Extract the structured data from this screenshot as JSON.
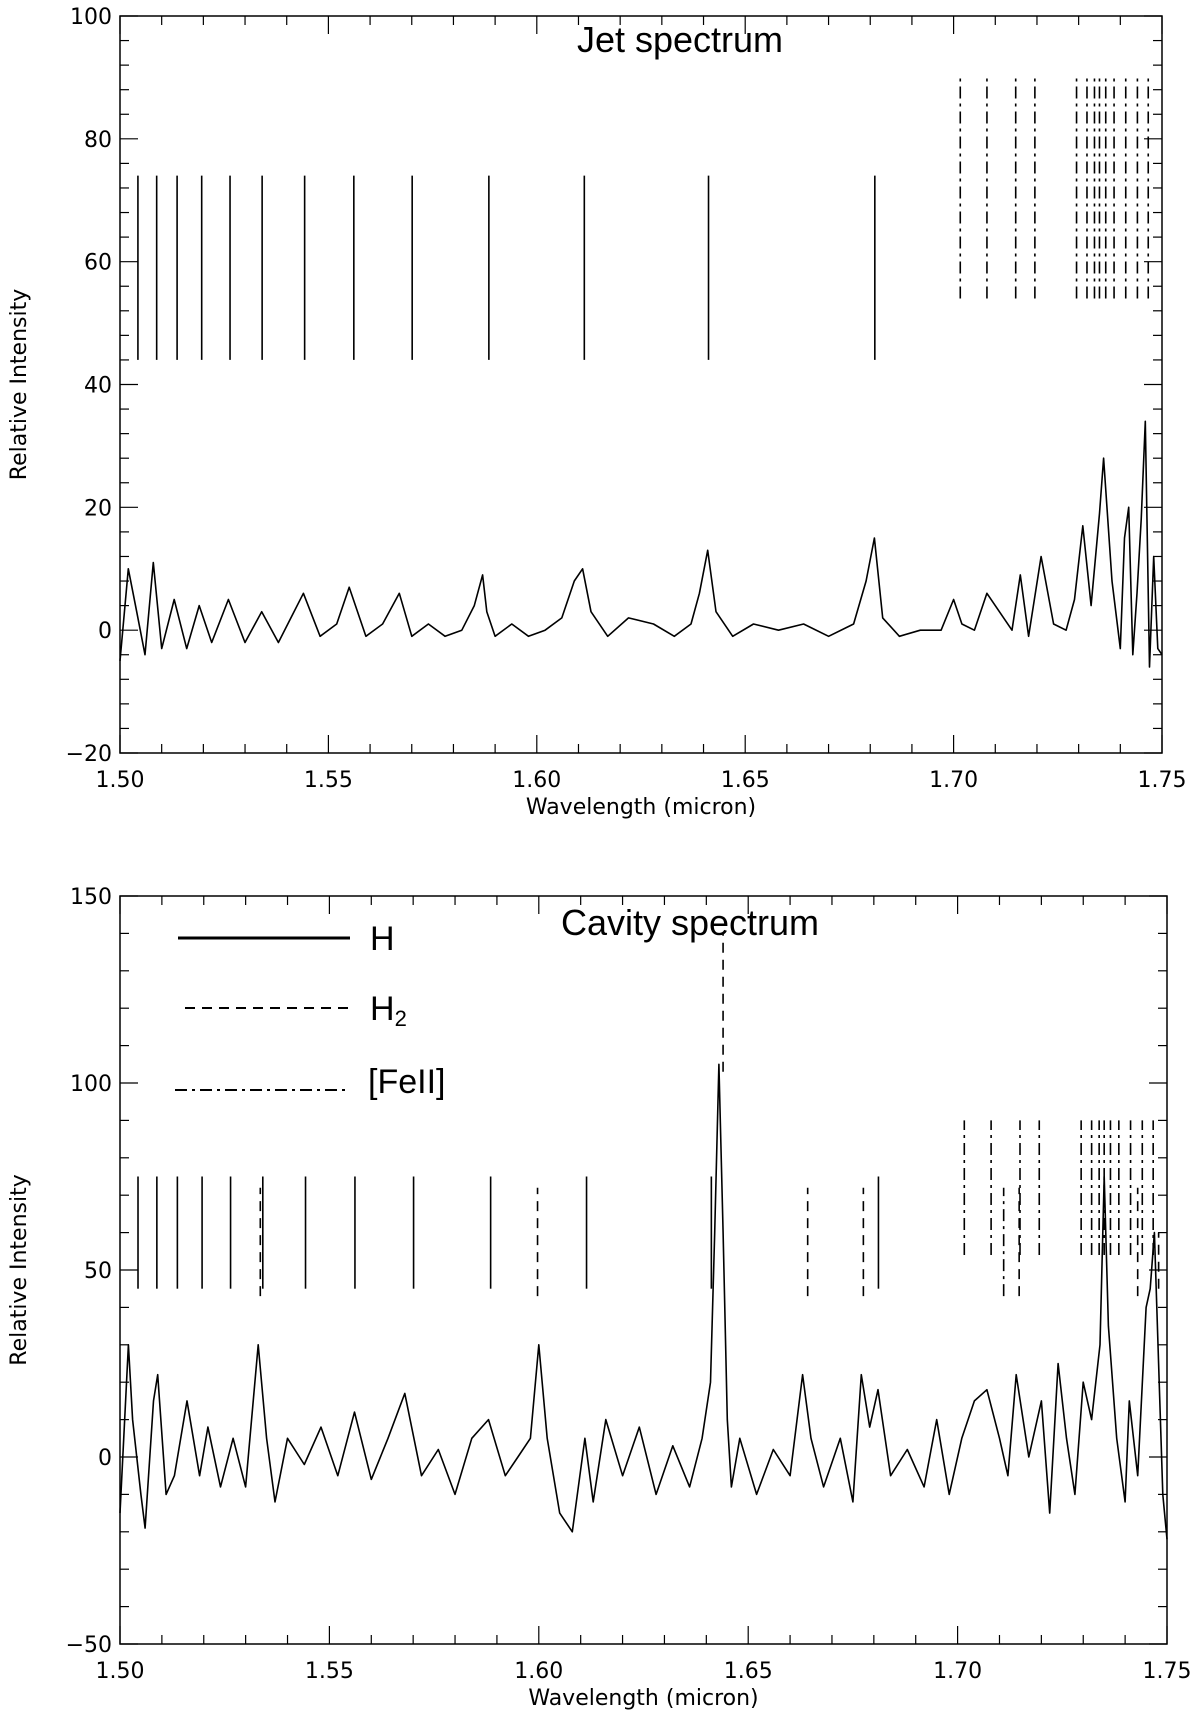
{
  "chart_data": [
    {
      "type": "line",
      "title": "Jet spectrum",
      "xlabel": "Wavelength (micron)",
      "ylabel": "Relative Intensity",
      "xlim": [
        1.5,
        1.75
      ],
      "ylim": [
        -20,
        100
      ],
      "xticks": [
        "1.50",
        "1.55",
        "1.60",
        "1.65",
        "1.70",
        "1.75"
      ],
      "yticks": [
        "−20",
        "0",
        "20",
        "40",
        "60",
        "80",
        "100"
      ],
      "grid": false,
      "series": [
        {
          "x": [
            1.5,
            1.502,
            1.504,
            1.506,
            1.508,
            1.51,
            1.513,
            1.516,
            1.519,
            1.522,
            1.526,
            1.53,
            1.534,
            1.538,
            1.541,
            1.544,
            1.548,
            1.552,
            1.555,
            1.559,
            1.563,
            1.567,
            1.57,
            1.574,
            1.578,
            1.582,
            1.585,
            1.587,
            1.588,
            1.59,
            1.594,
            1.598,
            1.602,
            1.606,
            1.609,
            1.611,
            1.613,
            1.617,
            1.622,
            1.628,
            1.633,
            1.637,
            1.639,
            1.641,
            1.643,
            1.647,
            1.652,
            1.658,
            1.664,
            1.67,
            1.676,
            1.679,
            1.681,
            1.683,
            1.687,
            1.692,
            1.697,
            1.7,
            1.702,
            1.705,
            1.708,
            1.711,
            1.714,
            1.716,
            1.718,
            1.721,
            1.724,
            1.727,
            1.729,
            1.731,
            1.733,
            1.735,
            1.736,
            1.738,
            1.74,
            1.741,
            1.742,
            1.743,
            1.744,
            1.745,
            1.746,
            1.747,
            1.748,
            1.749,
            1.75
          ],
          "y": [
            -5,
            10,
            3,
            -4,
            11,
            -3,
            5,
            -3,
            4,
            -2,
            5,
            -2,
            3,
            -2,
            2,
            6,
            -1,
            1,
            7,
            -1,
            1,
            6,
            -1,
            1,
            -1,
            0,
            4,
            9,
            3,
            -1,
            1,
            -1,
            0,
            2,
            8,
            10,
            3,
            -1,
            2,
            1,
            -1,
            1,
            6,
            13,
            3,
            -1,
            1,
            0,
            1,
            -1,
            1,
            8,
            15,
            2,
            -1,
            0,
            0,
            5,
            1,
            0,
            6,
            3,
            0,
            9,
            -1,
            12,
            1,
            0,
            5,
            17,
            4,
            19,
            28,
            8,
            -3,
            15,
            20,
            -4,
            6,
            18,
            34,
            -6,
            12,
            -3,
            -4
          ]
        }
      ],
      "line_ids": {
        "H": [
          1.5043,
          1.5088,
          1.5137,
          1.5196,
          1.5264,
          1.5341,
          1.5443,
          1.5561,
          1.5701,
          1.5885,
          1.6114,
          1.6412,
          1.6811
        ],
        "[FeII]": [
          1.7016,
          1.708,
          1.7149,
          1.7195,
          1.7295,
          1.732,
          1.7338,
          1.735,
          1.7365,
          1.7385,
          1.7413,
          1.7441,
          1.7467
        ]
      }
    },
    {
      "type": "line",
      "title": "Cavity spectrum",
      "xlabel": "Wavelength (micron)",
      "ylabel": "Relative Intensity",
      "xlim": [
        1.5,
        1.75
      ],
      "ylim": [
        -50,
        150
      ],
      "xticks": [
        "1.50",
        "1.55",
        "1.60",
        "1.65",
        "1.70",
        "1.75"
      ],
      "yticks": [
        "−50",
        "0",
        "50",
        "100",
        "150"
      ],
      "grid": false,
      "legend": {
        "position": "top-left",
        "entries": [
          {
            "label": "H",
            "style": "solid"
          },
          {
            "label": "H",
            "subscript": "2",
            "style": "dashed"
          },
          {
            "label": "[FeII]",
            "style": "dash-dot"
          }
        ]
      },
      "series": [
        {
          "x": [
            1.5,
            1.502,
            1.503,
            1.505,
            1.506,
            1.508,
            1.509,
            1.511,
            1.513,
            1.516,
            1.519,
            1.521,
            1.524,
            1.527,
            1.53,
            1.533,
            1.535,
            1.537,
            1.54,
            1.544,
            1.548,
            1.552,
            1.556,
            1.56,
            1.564,
            1.568,
            1.572,
            1.576,
            1.58,
            1.584,
            1.588,
            1.592,
            1.595,
            1.598,
            1.6,
            1.602,
            1.605,
            1.608,
            1.611,
            1.613,
            1.616,
            1.62,
            1.624,
            1.628,
            1.632,
            1.636,
            1.639,
            1.641,
            1.642,
            1.643,
            1.644,
            1.645,
            1.646,
            1.648,
            1.652,
            1.656,
            1.66,
            1.663,
            1.665,
            1.668,
            1.672,
            1.675,
            1.677,
            1.679,
            1.681,
            1.684,
            1.688,
            1.692,
            1.695,
            1.698,
            1.701,
            1.704,
            1.707,
            1.71,
            1.712,
            1.714,
            1.717,
            1.72,
            1.722,
            1.724,
            1.726,
            1.728,
            1.73,
            1.732,
            1.734,
            1.735,
            1.736,
            1.738,
            1.74,
            1.741,
            1.743,
            1.745,
            1.746,
            1.747,
            1.748,
            1.749,
            1.75
          ],
          "y": [
            -15,
            30,
            10,
            -10,
            -19,
            15,
            22,
            -10,
            -5,
            15,
            -5,
            8,
            -8,
            5,
            -8,
            30,
            5,
            -12,
            5,
            -2,
            8,
            -5,
            12,
            -6,
            5,
            17,
            -5,
            2,
            -10,
            5,
            10,
            -5,
            0,
            5,
            30,
            5,
            -15,
            -20,
            5,
            -12,
            10,
            -5,
            8,
            -10,
            3,
            -8,
            5,
            20,
            60,
            105,
            60,
            10,
            -8,
            5,
            -10,
            2,
            -5,
            22,
            5,
            -8,
            5,
            -12,
            22,
            8,
            18,
            -5,
            2,
            -8,
            10,
            -10,
            5,
            15,
            18,
            5,
            -5,
            22,
            0,
            15,
            -15,
            25,
            5,
            -10,
            20,
            10,
            30,
            75,
            35,
            5,
            -12,
            15,
            -5,
            40,
            45,
            60,
            25,
            -10,
            -22
          ]
        }
      ],
      "line_ids": {
        "H": [
          1.5043,
          1.5088,
          1.5137,
          1.5196,
          1.5264,
          1.5341,
          1.5443,
          1.5561,
          1.5701,
          1.5885,
          1.6114,
          1.6412,
          1.6811
        ],
        "H2": [
          1.5335,
          1.5997,
          1.644,
          1.6642,
          1.6775,
          1.7147,
          1.743,
          1.748
        ],
        "[FeII]": [
          1.7016,
          1.708,
          1.711,
          1.7149,
          1.7195,
          1.7295,
          1.732,
          1.7338,
          1.735,
          1.7365,
          1.7385,
          1.7413,
          1.7441,
          1.7467
        ]
      }
    }
  ]
}
